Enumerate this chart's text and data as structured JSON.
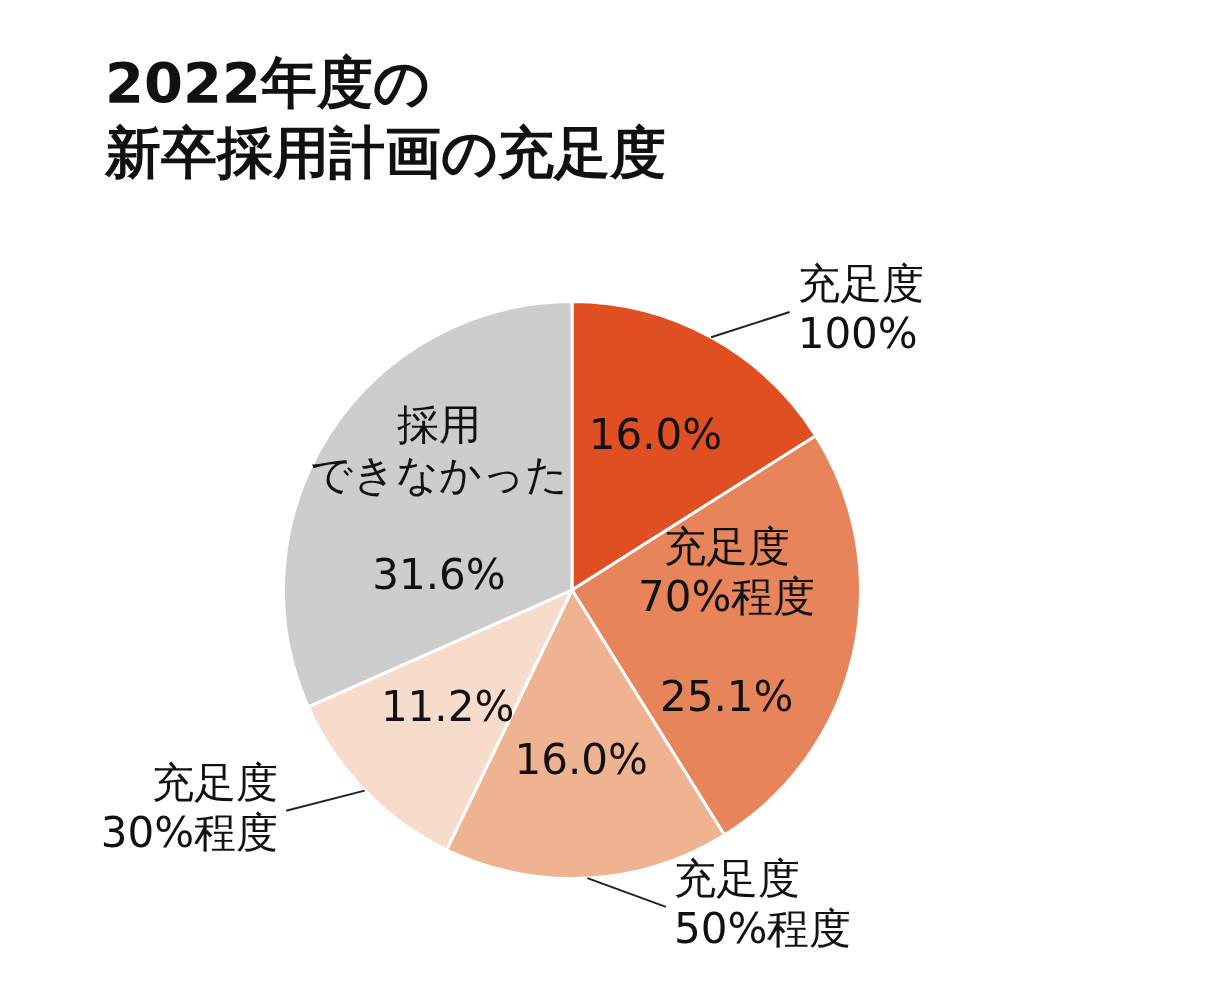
{
  "chart_data": {
    "type": "pie",
    "title": "2022年度の新卒採用計画の充足度",
    "categories": [
      "充足度100%",
      "充足度70%程度",
      "充足度50%程度",
      "充足度30%程度",
      "採用できなかった"
    ],
    "values": [
      16.0,
      25.1,
      16.0,
      11.2,
      31.6
    ],
    "value_labels": [
      "16.0%",
      "25.1%",
      "16.0%",
      "11.2%",
      "31.6%"
    ],
    "colors": [
      "#e04f22",
      "#e8845a",
      "#f0b392",
      "#f8dccb",
      "#cdcdcd"
    ],
    "legend": false
  }
}
